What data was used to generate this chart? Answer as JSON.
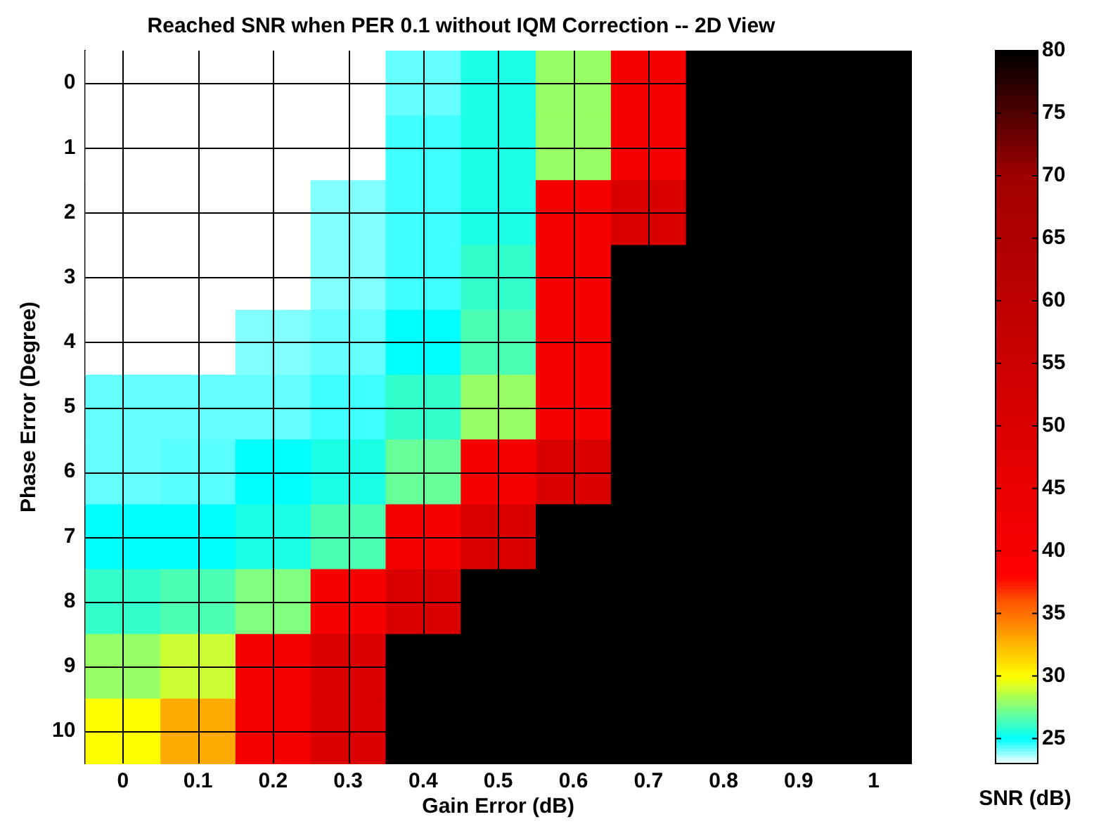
{
  "chart_data": {
    "type": "heatmap",
    "title": "Reached SNR when PER 0.1 without IQM Correction -- 2D View",
    "xlabel": "Gain Error (dB)",
    "ylabel": "Phase Error (Degree)",
    "clabel": "SNR (dB)",
    "categories": [
      "0",
      "0.1",
      "0.2",
      "0.3",
      "0.4",
      "0.5",
      "0.6",
      "0.7",
      "0.8",
      "0.9",
      "1"
    ],
    "y_categories": [
      "0",
      "1",
      "2",
      "3",
      "4",
      "5",
      "6",
      "7",
      "8",
      "9",
      "10"
    ],
    "cells": [
      [
        23,
        23,
        23,
        23,
        24.2,
        25.5,
        28,
        40,
        80,
        80,
        80
      ],
      [
        23,
        23,
        23,
        23,
        24.5,
        25.5,
        28,
        40,
        80,
        80,
        80
      ],
      [
        23,
        23,
        23,
        24,
        24.5,
        25.5,
        40,
        50,
        80,
        80,
        80
      ],
      [
        23,
        23,
        23,
        24,
        24.5,
        26,
        40,
        80,
        80,
        80,
        80
      ],
      [
        23,
        23,
        24,
        24.2,
        25,
        26.5,
        40,
        80,
        80,
        80,
        80
      ],
      [
        24.2,
        24.2,
        24.2,
        24.5,
        26,
        28,
        40,
        80,
        80,
        80,
        80
      ],
      [
        24.2,
        24.3,
        25,
        25.5,
        27,
        40,
        50,
        80,
        80,
        80,
        80
      ],
      [
        25,
        25,
        25.5,
        26.5,
        40,
        50,
        80,
        80,
        80,
        80,
        80
      ],
      [
        26,
        26.5,
        27.5,
        40,
        50,
        80,
        80,
        80,
        80,
        80,
        80
      ],
      [
        28,
        29,
        40,
        50,
        80,
        80,
        80,
        80,
        80,
        80,
        80
      ],
      [
        30,
        33,
        40,
        50,
        80,
        80,
        80,
        80,
        80,
        80,
        80
      ]
    ],
    "clim": [
      23,
      80
    ],
    "cticks": [
      25,
      30,
      35,
      40,
      45,
      50,
      55,
      60,
      65,
      70,
      75,
      80
    ],
    "grid": true
  }
}
